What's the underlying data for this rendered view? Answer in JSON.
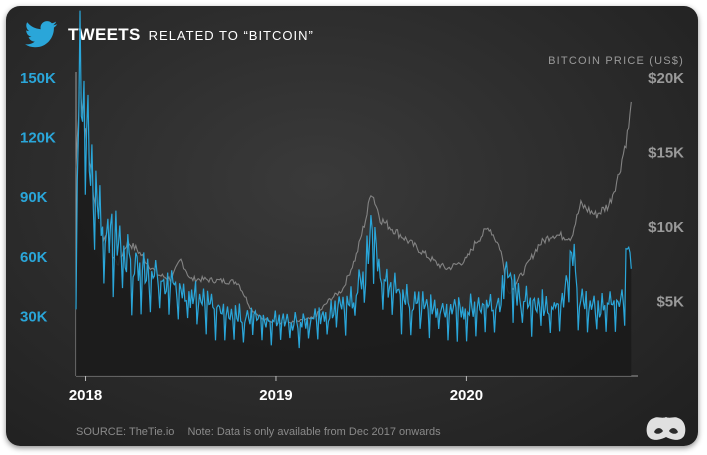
{
  "header": {
    "title": "TWEETS",
    "subtitle": "RELATED TO “BITCOIN”",
    "icon": "twitter-bird-icon"
  },
  "footer": {
    "source": "SOURCE: TheTie.io",
    "note": "Note: Data is only available from Dec 2017 onwards",
    "logo_icon": "visual-capitalist-logo-icon"
  },
  "colors": {
    "tweets": "#2aa6d9",
    "price": "#8c8c8c",
    "background": "#2b2b2b"
  },
  "chart_data": {
    "type": "line",
    "title": "TWEETS RELATED TO “BITCOIN”",
    "right_axis_label": "BITCOIN PRICE (US$)",
    "x_ticks": [
      "2018",
      "2019",
      "2020"
    ],
    "x_tick_years": [
      2018,
      2019,
      2020
    ],
    "xlim": [
      2017.95,
      2020.88
    ],
    "left_axis": {
      "ylim": [
        0,
        150000
      ],
      "ticks": [
        30000,
        60000,
        90000,
        120000,
        150000
      ],
      "tick_labels": [
        "30K",
        "60K",
        "90K",
        "120K",
        "150K"
      ]
    },
    "right_axis": {
      "ylim": [
        0,
        20000
      ],
      "ticks": [
        5000,
        10000,
        15000,
        20000
      ],
      "tick_labels": [
        "$5K",
        "$10K",
        "$15K",
        "$20K"
      ]
    },
    "series": [
      {
        "name": "Tweets",
        "axis": "left",
        "x": [
          2017.95,
          2017.97,
          2017.99,
          2018.01,
          2018.03,
          2018.05,
          2018.08,
          2018.12,
          2018.16,
          2018.22,
          2018.3,
          2018.38,
          2018.45,
          2018.52,
          2018.6,
          2018.7,
          2018.8,
          2018.9,
          2019.0,
          2019.1,
          2019.2,
          2019.3,
          2019.4,
          2019.47,
          2019.5,
          2019.55,
          2019.6,
          2019.7,
          2019.8,
          2019.9,
          2020.0,
          2020.1,
          2020.18,
          2020.2,
          2020.25,
          2020.3,
          2020.4,
          2020.5,
          2020.55,
          2020.6,
          2020.7,
          2020.78,
          2020.82,
          2020.85,
          2020.87
        ],
        "values": [
          60000,
          145000,
          130000,
          115000,
          95000,
          88000,
          78000,
          70000,
          65000,
          58000,
          52000,
          47000,
          43000,
          40000,
          36000,
          32000,
          30000,
          28000,
          26000,
          25000,
          27000,
          32000,
          38000,
          50000,
          75000,
          48000,
          42000,
          36000,
          33000,
          31000,
          32000,
          34000,
          36000,
          55000,
          40000,
          36000,
          34000,
          33000,
          60000,
          35000,
          33000,
          34000,
          36000,
          65000,
          45000
        ]
      },
      {
        "name": "Bitcoin price",
        "axis": "right",
        "x": [
          2017.95,
          2017.97,
          2017.99,
          2018.02,
          2018.05,
          2018.08,
          2018.12,
          2018.17,
          2018.22,
          2018.27,
          2018.33,
          2018.38,
          2018.45,
          2018.5,
          2018.55,
          2018.6,
          2018.7,
          2018.8,
          2018.87,
          2018.93,
          2019.0,
          2019.1,
          2019.2,
          2019.28,
          2019.35,
          2019.42,
          2019.48,
          2019.5,
          2019.55,
          2019.6,
          2019.7,
          2019.78,
          2019.85,
          2019.9,
          2020.0,
          2020.05,
          2020.12,
          2020.18,
          2020.22,
          2020.3,
          2020.38,
          2020.45,
          2020.55,
          2020.6,
          2020.68,
          2020.75,
          2020.8,
          2020.85,
          2020.87
        ],
        "values": [
          14000,
          19500,
          17000,
          14500,
          11500,
          10000,
          8500,
          7500,
          9000,
          8500,
          7500,
          6800,
          6500,
          7800,
          6500,
          6500,
          6400,
          6300,
          4500,
          3800,
          3600,
          3600,
          3900,
          5100,
          5800,
          8000,
          11000,
          12500,
          10500,
          10000,
          9000,
          8200,
          7500,
          7200,
          7800,
          9000,
          10000,
          8500,
          5500,
          7000,
          8800,
          9500,
          9300,
          11500,
          10800,
          11500,
          13500,
          16500,
          18500
        ]
      }
    ]
  }
}
